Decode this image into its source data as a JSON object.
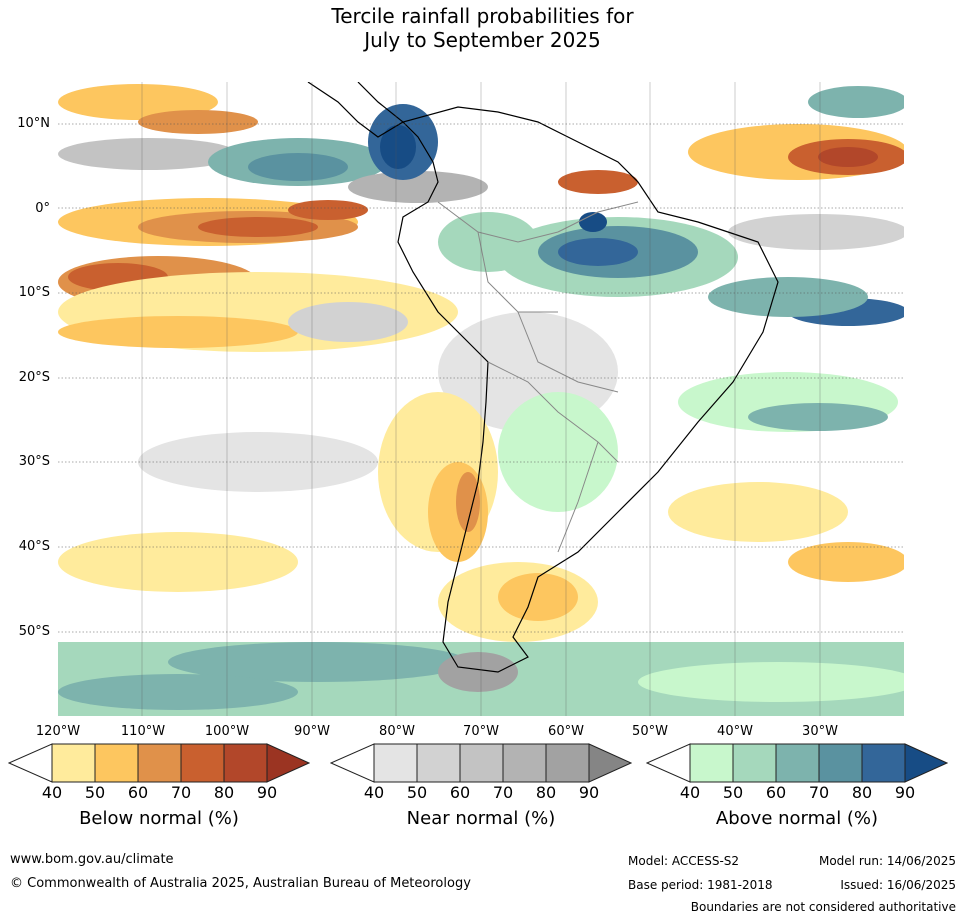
{
  "title": {
    "line1": "Tercile rainfall probabilities for",
    "line2": "July to September 2025"
  },
  "map": {
    "latitude_labels": [
      "10°N",
      "0°",
      "10°S",
      "20°S",
      "30°S",
      "40°S",
      "50°S"
    ],
    "longitude_labels": [
      "120°W",
      "110°W",
      "100°W",
      "90°W",
      "80°W",
      "70°W",
      "60°W",
      "50°W",
      "40°W",
      "30°W"
    ]
  },
  "colorbars": [
    {
      "label": "Below normal (%)",
      "ticks": [
        "40",
        "50",
        "60",
        "70",
        "80",
        "90"
      ],
      "colors": [
        "#ffeb9c",
        "#fdc65f",
        "#e0914a",
        "#c9602f",
        "#b2472a",
        "#9b3422"
      ]
    },
    {
      "label": "Near normal (%)",
      "ticks": [
        "40",
        "50",
        "60",
        "70",
        "80",
        "90"
      ],
      "colors": [
        "#e4e4e4",
        "#d2d2d2",
        "#c3c3c3",
        "#b3b3b3",
        "#a2a2a2",
        "#858585"
      ]
    },
    {
      "label": "Above normal (%)",
      "ticks": [
        "40",
        "50",
        "60",
        "70",
        "80",
        "90"
      ],
      "colors": [
        "#c8f7cc",
        "#a5d8bc",
        "#7db3ad",
        "#5a92a0",
        "#336699",
        "#174c85"
      ]
    }
  ],
  "footer": {
    "website": "www.bom.gov.au/climate",
    "copyright": "© Commonwealth of Australia 2025, Australian Bureau of Meteorology",
    "model": "Model: ACCESS-S2",
    "base_period": "Base period: 1981-2018",
    "model_run": "Model run: 14/06/2025",
    "issued": "Issued: 16/06/2025",
    "boundaries_note": "Boundaries are not considered authoritative"
  }
}
